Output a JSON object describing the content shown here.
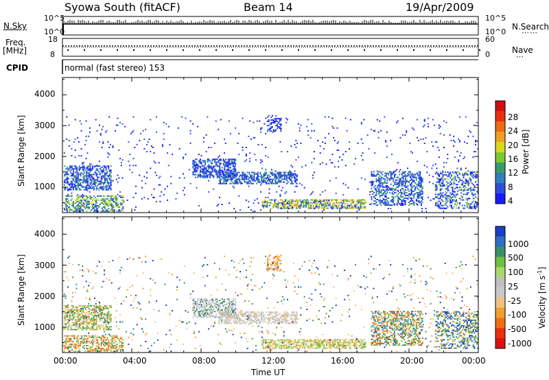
{
  "header": {
    "station": "Syowa South (fitACF)",
    "beam": "Beam 14",
    "date": "19/Apr/2009"
  },
  "nsky_panel": {
    "left_label": "N.Sky",
    "right_label": "N.Search",
    "ticks": [
      "10^5",
      "10^0"
    ]
  },
  "freq_panel": {
    "left_label_line1": "Freq.",
    "left_label_line2": "[MHz]",
    "right_label": "Nave",
    "left_ticks": [
      "18",
      "8"
    ],
    "right_ticks": [
      "60",
      "0"
    ]
  },
  "cpid": {
    "label": "CPID",
    "value": "normal (fast stereo) 153"
  },
  "chart_data": [
    {
      "type": "heatmap",
      "panel": "power",
      "xlabel": "Time UT",
      "ylabel": "Slant Range [km]",
      "xlim_hours": [
        0,
        24
      ],
      "ylim": [
        180,
        4560
      ],
      "x_ticks": [
        "00:00",
        "04:00",
        "08:00",
        "12:00",
        "16:00",
        "20:00",
        "00:00"
      ],
      "y_ticks": [
        "1000",
        "2000",
        "3000",
        "4000"
      ],
      "colorbar": {
        "label": "Power [dB]",
        "ticks": [
          "4",
          "8",
          "12",
          "16",
          "20",
          "24",
          "28"
        ],
        "colors": [
          "#1a1aff",
          "#2d4fd8",
          "#2f7fbf",
          "#3a9a6a",
          "#7cc832",
          "#d9d919",
          "#f0a020",
          "#f06a10",
          "#e83010",
          "#d01010"
        ]
      }
    },
    {
      "type": "heatmap",
      "panel": "velocity",
      "xlabel": "Time UT",
      "ylabel": "Slant Range [km]",
      "xlim_hours": [
        0,
        24
      ],
      "ylim": [
        180,
        4560
      ],
      "x_ticks": [
        "00:00",
        "04:00",
        "08:00",
        "12:00",
        "16:00",
        "20:00",
        "00:00"
      ],
      "y_ticks": [
        "1000",
        "2000",
        "3000",
        "4000"
      ],
      "colorbar": {
        "label": "Velocity [m s",
        "label_sup": "-1",
        "label_end": "]",
        "ticks": [
          "1000",
          "500",
          "100",
          "25",
          "-25",
          "-100",
          "-500",
          "-1000"
        ],
        "colors": [
          "#1a3fbf",
          "#2f6fbf",
          "#3a8f6a",
          "#6fc040",
          "#a8d870",
          "#c0c0c0",
          "#c8c8c8",
          "#f0c080",
          "#f0a030",
          "#f07010",
          "#e83010",
          "#e01010"
        ]
      }
    }
  ],
  "footer": {
    "xlabel": "Time UT"
  }
}
